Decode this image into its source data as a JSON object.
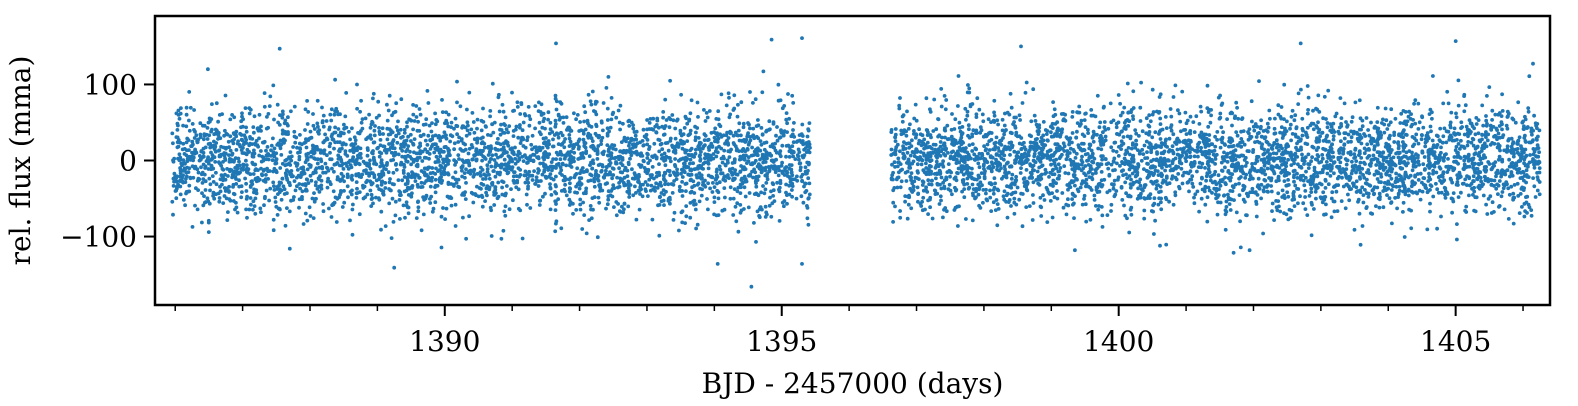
{
  "chart_data": {
    "type": "scatter",
    "xlabel": "BJD - 2457000 (days)",
    "ylabel": "rel. flux (mma)",
    "xlim": [
      1385.7,
      1406.4
    ],
    "ylim": [
      -190,
      190
    ],
    "x_ticks": [
      1390,
      1395,
      1400,
      1405
    ],
    "x_tick_labels": [
      "1390",
      "1395",
      "1400",
      "1405"
    ],
    "x_minor_step": 1,
    "y_ticks": [
      -100,
      0,
      100
    ],
    "y_tick_labels": [
      "−100",
      "0",
      "100"
    ],
    "grid": false,
    "legend": "none",
    "marker_color": "#1f77b4",
    "series": [
      {
        "segments": [
          {
            "x_start": 1385.95,
            "x_end": 1395.42,
            "n_points": 3400,
            "mean": 0,
            "std": 35
          },
          {
            "x_start": 1396.62,
            "x_end": 1406.25,
            "n_points": 3600,
            "mean": 0,
            "std": 35
          }
        ],
        "outliers": [
          {
            "x": 1387.55,
            "y": 147
          },
          {
            "x": 1391.65,
            "y": 154
          },
          {
            "x": 1394.85,
            "y": 159
          },
          {
            "x": 1395.3,
            "y": 161
          },
          {
            "x": 1398.55,
            "y": 150
          },
          {
            "x": 1402.7,
            "y": 154
          },
          {
            "x": 1405.0,
            "y": 157
          },
          {
            "x": 1389.25,
            "y": -141
          },
          {
            "x": 1394.05,
            "y": -136
          },
          {
            "x": 1394.55,
            "y": -166
          },
          {
            "x": 1395.3,
            "y": -136
          },
          {
            "x": 1387.7,
            "y": -116
          },
          {
            "x": 1399.35,
            "y": -118
          }
        ]
      }
    ]
  }
}
